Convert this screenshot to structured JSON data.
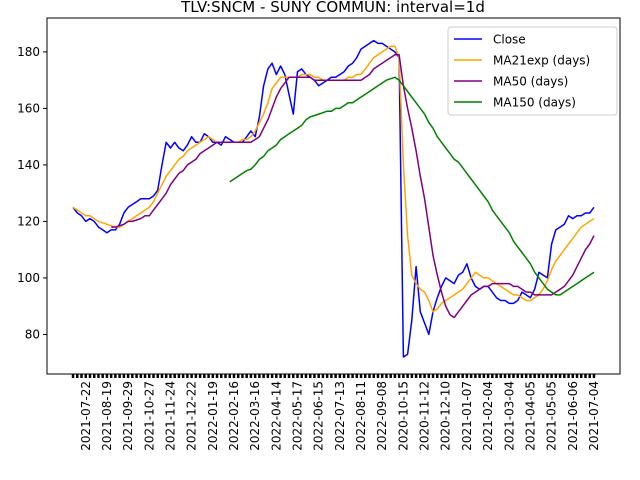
{
  "chart_data": {
    "type": "line",
    "title": "TLV:SNCM - SUNY COMMUN: interval=1d",
    "categories": [
      null,
      null,
      null,
      "2021-07-22",
      null,
      null,
      null,
      null,
      "2021-08-19",
      null,
      null,
      null,
      null,
      "2021-09-29",
      null,
      null,
      null,
      null,
      "2021-10-27",
      null,
      null,
      null,
      null,
      "2021-11-24",
      null,
      null,
      null,
      null,
      "2021-12-22",
      null,
      null,
      null,
      null,
      "2022-01-19",
      null,
      null,
      null,
      null,
      "2022-02-16",
      null,
      null,
      null,
      null,
      "2022-03-16",
      null,
      null,
      null,
      null,
      "2022-04-14",
      null,
      null,
      null,
      null,
      "2022-05-17",
      null,
      null,
      null,
      null,
      "2022-06-15",
      null,
      null,
      null,
      null,
      "2022-07-13",
      null,
      null,
      null,
      null,
      "2022-08-11",
      null,
      null,
      null,
      null,
      "2022-09-08",
      null,
      null,
      null,
      null,
      "2020-10-15",
      null,
      null,
      null,
      null,
      "2020-11-12",
      null,
      null,
      null,
      null,
      "2020-12-10",
      null,
      null,
      null,
      null,
      "2021-01-07",
      null,
      null,
      null,
      null,
      "2021-02-04",
      null,
      null,
      null,
      null,
      "2021-03-04",
      null,
      null,
      null,
      null,
      "2021-04-05",
      null,
      null,
      null,
      null,
      "2021-05-05",
      null,
      null,
      null,
      null,
      "2021-06-06",
      null,
      null,
      null,
      null,
      "2021-07-04"
    ],
    "series": [
      {
        "name": "Close",
        "color": "#0000ff",
        "values": [
          125,
          123,
          122,
          120,
          121,
          120,
          118,
          117,
          116,
          117,
          117,
          119,
          123,
          125,
          126,
          127,
          128,
          128,
          128,
          129,
          131,
          140,
          148,
          146,
          148,
          146,
          145,
          147,
          150,
          148,
          148,
          151,
          150,
          148,
          148,
          147,
          150,
          149,
          148,
          148,
          148,
          150,
          152,
          150,
          157,
          168,
          174,
          176,
          172,
          175,
          172,
          165,
          158,
          173,
          174,
          172,
          171,
          170,
          168,
          169,
          170,
          171,
          171,
          172,
          173,
          175,
          176,
          178,
          181,
          182,
          183,
          184,
          183,
          183,
          182,
          181,
          180,
          178,
          72,
          73,
          85,
          104,
          88,
          84,
          80,
          88,
          93,
          97,
          100,
          99,
          98,
          101,
          102,
          105,
          100,
          97,
          96,
          97,
          97,
          95,
          93,
          92,
          92,
          91,
          91,
          92,
          95,
          94,
          93,
          96,
          102,
          101,
          100,
          112,
          117,
          118,
          119,
          122,
          121,
          122,
          122,
          123,
          123,
          125
        ]
      },
      {
        "name": "MA21exp (days)",
        "color": "#ffa500",
        "values": [
          125,
          124,
          123,
          122,
          122,
          121,
          120,
          119.5,
          119,
          118.5,
          118,
          118,
          119,
          120,
          121,
          122,
          123,
          124,
          125,
          127,
          130,
          133,
          136,
          138,
          140,
          142,
          143,
          145,
          146,
          147,
          148,
          149,
          150,
          149,
          148,
          148,
          148,
          148,
          148,
          148,
          149,
          149,
          150,
          152,
          155,
          158,
          162,
          167,
          169,
          171,
          171,
          171,
          171,
          171,
          172,
          172,
          172,
          171,
          171,
          170,
          170,
          170,
          170,
          170,
          170,
          171,
          171,
          172,
          172,
          174,
          176,
          178,
          179,
          180,
          181,
          182,
          182,
          178,
          140,
          115,
          101,
          98,
          96,
          95,
          92,
          88,
          89,
          91,
          92,
          93,
          94,
          95,
          96,
          98,
          100,
          102,
          101,
          100,
          100,
          99,
          98,
          97,
          96,
          95,
          94,
          94,
          93,
          92,
          92,
          93,
          94,
          96,
          99,
          103,
          106,
          108,
          110,
          112,
          114,
          116,
          118,
          119,
          120,
          121
        ]
      },
      {
        "name": "MA50 (days)",
        "color": "#800080",
        "values": [
          null,
          null,
          null,
          null,
          null,
          null,
          null,
          null,
          null,
          118,
          118,
          118.5,
          119,
          120,
          120,
          120.5,
          121,
          122,
          122,
          124,
          126,
          128,
          130,
          133,
          135,
          137,
          138,
          140,
          141,
          142,
          144,
          145,
          146,
          147,
          148,
          148,
          148,
          148,
          148,
          148,
          148,
          148,
          148,
          149,
          150,
          153,
          156,
          160,
          164,
          167,
          169,
          171,
          171,
          171,
          171,
          171,
          171,
          170,
          170,
          170,
          170,
          170,
          170,
          170,
          170,
          170,
          170,
          170,
          170,
          171,
          172,
          174,
          175,
          176,
          177,
          178,
          179,
          179,
          168,
          160,
          153,
          145,
          136,
          128,
          118,
          108,
          101,
          95,
          90,
          87,
          86,
          88,
          90,
          92,
          94,
          95,
          96,
          97,
          97,
          98,
          98,
          98,
          98,
          98,
          97,
          97,
          96,
          95,
          95,
          94,
          94,
          94,
          94,
          94,
          95,
          96,
          97,
          99,
          101,
          104,
          107,
          110,
          112,
          115
        ]
      },
      {
        "name": "MA150 (days)",
        "color": "#008000",
        "values": [
          null,
          null,
          null,
          null,
          null,
          null,
          null,
          null,
          null,
          null,
          null,
          null,
          null,
          null,
          null,
          null,
          null,
          null,
          null,
          null,
          null,
          null,
          null,
          null,
          null,
          null,
          null,
          null,
          null,
          null,
          null,
          null,
          null,
          null,
          null,
          null,
          null,
          134,
          135,
          136,
          137,
          138,
          138.5,
          140,
          142,
          143,
          145,
          146,
          147,
          149,
          150,
          151,
          152,
          153,
          154,
          156,
          157,
          157.5,
          158,
          158.5,
          159,
          159,
          160,
          160,
          161,
          162,
          162,
          163,
          164,
          165,
          166,
          167,
          168,
          169,
          170,
          170.5,
          171,
          170,
          168,
          166,
          164,
          162,
          160,
          158,
          155,
          153,
          150,
          148,
          146,
          144,
          142,
          141,
          139,
          137,
          135,
          133,
          131,
          129,
          127,
          124,
          122,
          120,
          118,
          116,
          113,
          111,
          109,
          107,
          105,
          102,
          100,
          98,
          96,
          95,
          94,
          94,
          95,
          96,
          97,
          98,
          99,
          100,
          101,
          102
        ]
      }
    ],
    "ylim": [
      66,
      192
    ],
    "yticks": [
      80,
      100,
      120,
      140,
      160,
      180
    ],
    "legend": "upper right"
  }
}
